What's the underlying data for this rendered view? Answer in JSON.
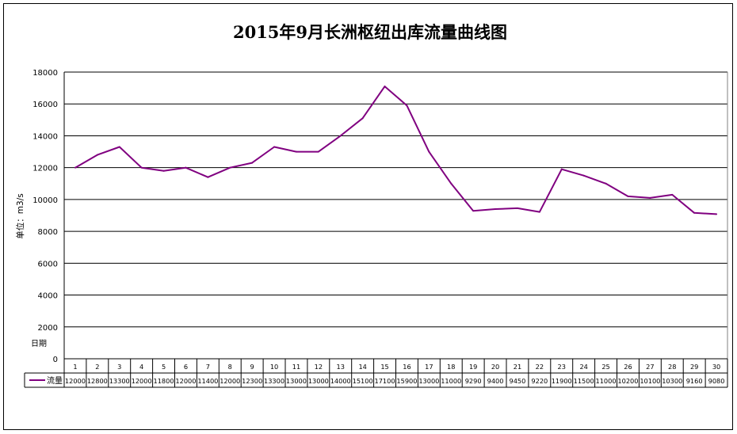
{
  "chart_data": {
    "type": "line",
    "title": "2015年9月长洲枢纽出库流量曲线图",
    "ylabel": "单位：m3/s",
    "xlabel": "日期",
    "ylim": [
      0,
      18000
    ],
    "yticks": [
      "0",
      "2000",
      "4000",
      "6000",
      "8000",
      "10000",
      "12000",
      "14000",
      "16000",
      "18000"
    ],
    "grid": true,
    "categories": [
      "1",
      "2",
      "3",
      "4",
      "5",
      "6",
      "7",
      "8",
      "9",
      "10",
      "11",
      "12",
      "13",
      "14",
      "15",
      "16",
      "17",
      "18",
      "19",
      "20",
      "21",
      "22",
      "23",
      "24",
      "25",
      "26",
      "27",
      "28",
      "29",
      "30"
    ],
    "series": [
      {
        "name": "流量",
        "color": "#800080",
        "values": [
          12000,
          12800,
          13300,
          12000,
          11800,
          12000,
          11400,
          12000,
          12300,
          13300,
          13000,
          13000,
          14000,
          15100,
          17100,
          15900,
          13000,
          11000,
          9290,
          9400,
          9450,
          9220,
          11900,
          11500,
          11000,
          10200,
          10100,
          10300,
          9160,
          9080
        ]
      }
    ],
    "legend_placement": "data-table"
  }
}
